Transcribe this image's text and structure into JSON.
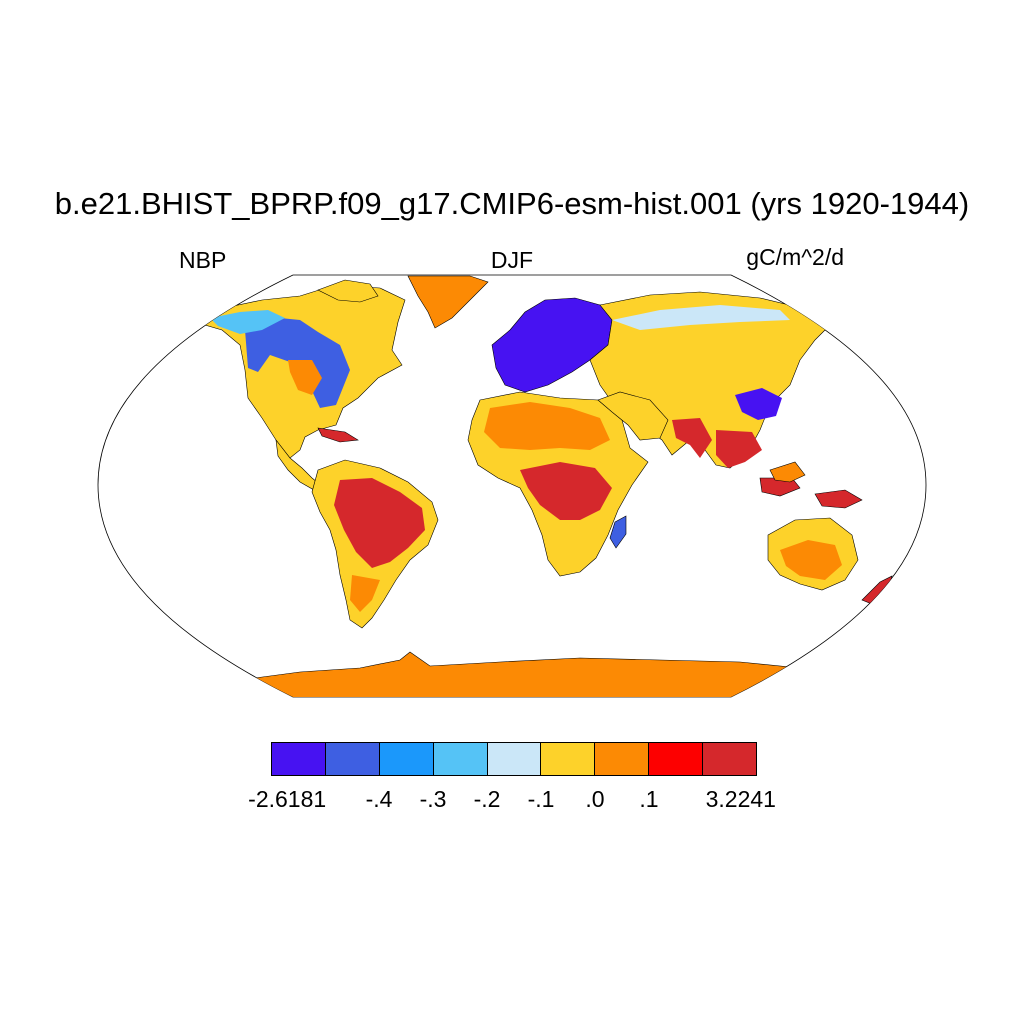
{
  "title": "b.e21.BHIST_BPRP.f09_g17.CMIP6-esm-hist.001 (yrs 1920-1944)",
  "subtitle_left": "NBP",
  "subtitle_center": "DJF",
  "subtitle_right": "gC/m^2/d",
  "colorbar": {
    "colors": [
      "#4712f2",
      "#3e5fe2",
      "#1b98fb",
      "#55c3f6",
      "#cbe7f8",
      "#fdd22a",
      "#fc8a04",
      "#fd0000",
      "#d5282c"
    ],
    "labels": [
      "-2.6181",
      "-.4",
      "-.3",
      "-.2",
      "-.1",
      ".0",
      ".1",
      "3.2241"
    ]
  },
  "legend_colors": {
    "ocean": "#ffffff",
    "antarctica": "#fc8a04",
    "greenland": "#fc8a04",
    "coast": "#000000"
  }
}
